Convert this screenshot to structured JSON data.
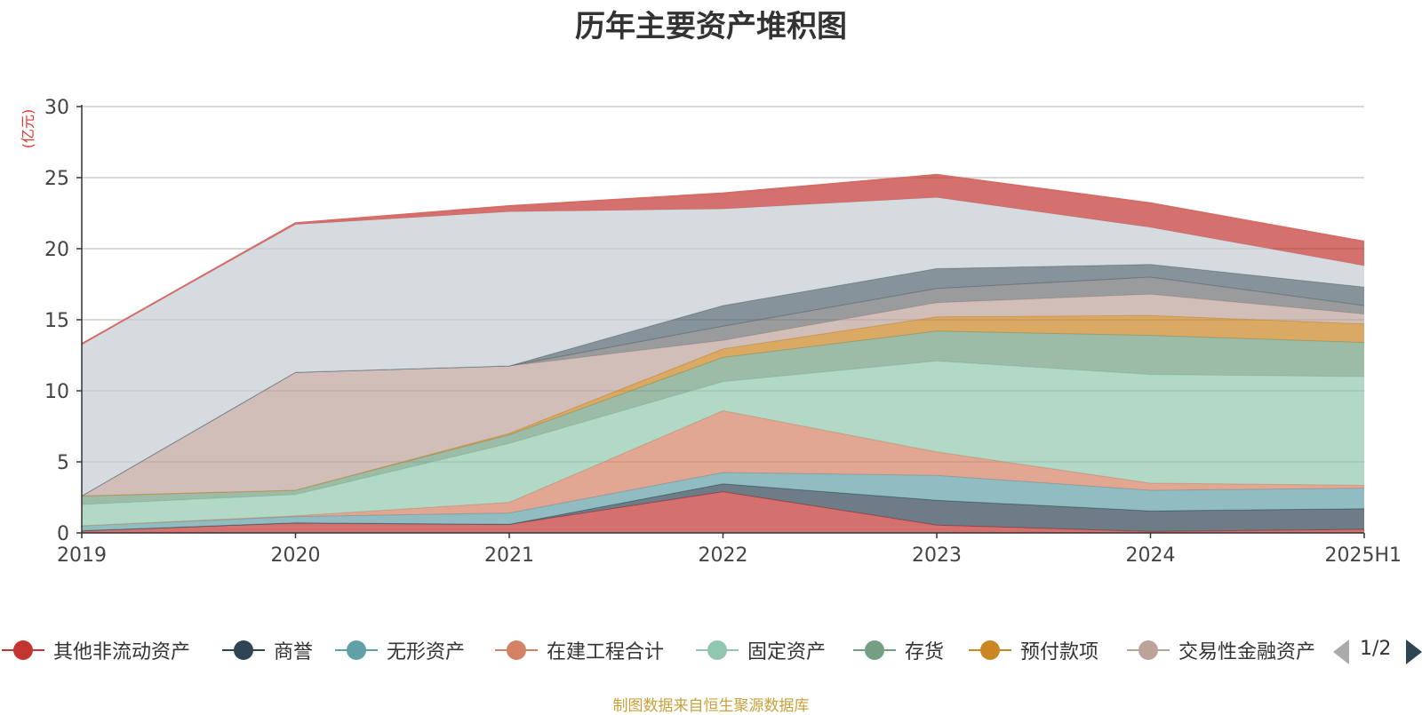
{
  "chart_data": {
    "type": "area",
    "title": "历年主要资产堆积图",
    "unit_label": "(亿元)",
    "categories": [
      "2019",
      "2020",
      "2021",
      "2022",
      "2023",
      "2024",
      "2025H1"
    ],
    "ylim": [
      0,
      30
    ],
    "yticks": [
      0,
      5,
      10,
      15,
      20,
      25,
      30
    ],
    "grid": true,
    "stacked": true,
    "legend_position": "bottom",
    "series": [
      {
        "name": "其他非流动资产",
        "color": "#c23531",
        "values": [
          0.15,
          0.7,
          0.6,
          2.9,
          0.55,
          0.1,
          0.25
        ]
      },
      {
        "name": "商誉",
        "color": "#2f4554",
        "values": [
          0.0,
          0.0,
          0.0,
          0.55,
          1.75,
          1.45,
          1.45
        ]
      },
      {
        "name": "无形资产",
        "color": "#61a0a8",
        "values": [
          0.35,
          0.45,
          0.8,
          0.8,
          1.75,
          1.45,
          1.45
        ]
      },
      {
        "name": "在建工程合计",
        "color": "#d48265",
        "values": [
          0.0,
          0.05,
          0.75,
          4.35,
          1.65,
          0.5,
          0.2
        ]
      },
      {
        "name": "固定资产",
        "color": "#91c7ae",
        "values": [
          1.5,
          1.5,
          4.15,
          2.05,
          6.4,
          7.65,
          7.65
        ]
      },
      {
        "name": "存货",
        "color": "#749f83",
        "values": [
          0.6,
          0.3,
          0.6,
          1.7,
          2.1,
          2.75,
          2.4
        ]
      },
      {
        "name": "预付款项",
        "color": "#ca8622",
        "values": [
          0.0,
          0.0,
          0.1,
          0.6,
          1.0,
          1.4,
          1.3
        ]
      },
      {
        "name": "交易性金融资产",
        "color": "#bda29a",
        "values": [
          0.0,
          8.3,
          4.75,
          0.6,
          1.0,
          1.5,
          0.7
        ]
      },
      {
        "name": "",
        "color": "#6e7074",
        "values": [
          0.0,
          0.0,
          0.0,
          1.0,
          1.0,
          1.2,
          0.6
        ]
      },
      {
        "name": "",
        "color": "#546570",
        "values": [
          0.0,
          0.0,
          0.0,
          1.45,
          1.4,
          0.9,
          1.3
        ]
      },
      {
        "name": "",
        "color": "#c4ccd3",
        "values": [
          10.7,
          10.4,
          10.85,
          6.8,
          5.0,
          2.6,
          1.5
        ]
      },
      {
        "name": "",
        "color": "#c23531",
        "values": [
          0.0,
          0.1,
          0.4,
          1.1,
          1.6,
          1.7,
          1.7
        ]
      }
    ]
  },
  "legend": {
    "page_indicator": "1/2"
  },
  "source_note": "制图数据来自恒生聚源数据库"
}
